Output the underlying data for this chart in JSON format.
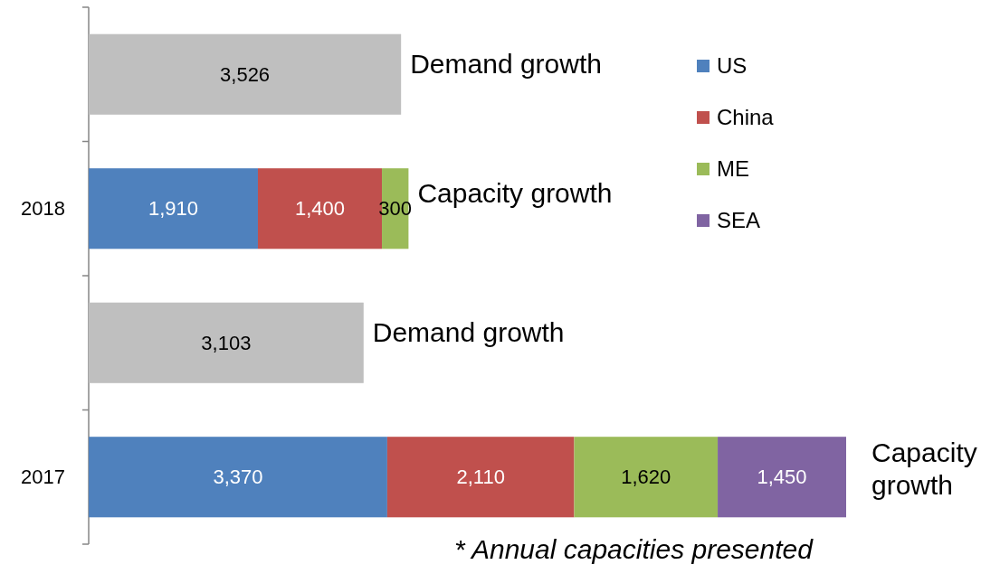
{
  "chart_data": {
    "type": "bar",
    "orientation": "horizontal",
    "stacked": true,
    "categories": [
      null,
      "2018",
      null,
      "2017"
    ],
    "series": [
      {
        "color": "#bfbfbf",
        "values": [
          3526,
          null,
          3103,
          null
        ],
        "value_labels": [
          "3,526",
          null,
          "3,103",
          null
        ]
      },
      {
        "name": "US",
        "color": "#4f81bd",
        "values": [
          null,
          1910,
          null,
          3370
        ],
        "value_labels": [
          null,
          "1,910",
          null,
          "3,370"
        ]
      },
      {
        "name": "China",
        "color": "#c0504d",
        "values": [
          null,
          1400,
          null,
          2110
        ],
        "value_labels": [
          null,
          "1,400",
          null,
          "2,110"
        ]
      },
      {
        "name": "ME",
        "color": "#9bbb59",
        "values": [
          null,
          300,
          null,
          1620
        ],
        "value_labels": [
          null,
          "300",
          null,
          "1,620"
        ]
      },
      {
        "name": "SEA",
        "color": "#8064a2",
        "values": [
          null,
          null,
          null,
          1450
        ],
        "value_labels": [
          null,
          null,
          null,
          "1,450"
        ]
      }
    ],
    "legend": "right",
    "tick_labels": "y",
    "annotations": [
      "Demand growth",
      "Capacity growth",
      "Demand growth",
      "Capacity growth",
      "* Annual capacities presented"
    ]
  }
}
